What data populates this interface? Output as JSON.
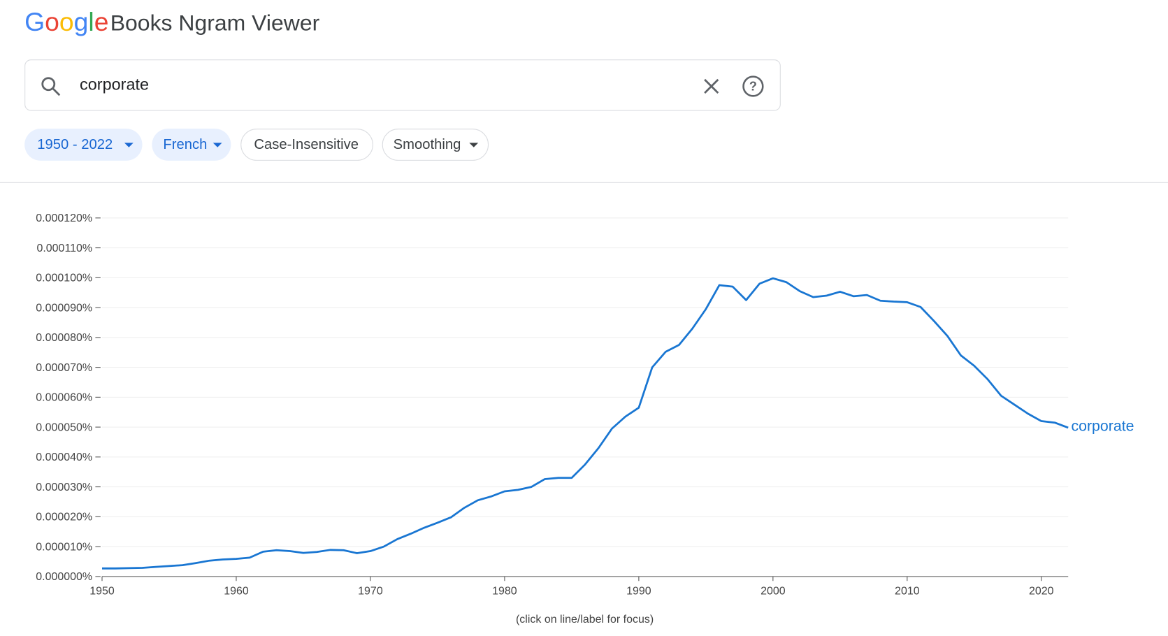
{
  "header": {
    "logo": "Google",
    "title": "Books Ngram Viewer"
  },
  "search": {
    "query": "corporate"
  },
  "filters": [
    "1950 - 2022",
    "French",
    "Case-Insensitive",
    "Smoothing"
  ],
  "chart_data": {
    "type": "line",
    "x": [
      1950,
      1951,
      1952,
      1953,
      1954,
      1955,
      1956,
      1957,
      1958,
      1959,
      1960,
      1961,
      1962,
      1963,
      1964,
      1965,
      1966,
      1967,
      1968,
      1969,
      1970,
      1971,
      1972,
      1973,
      1974,
      1975,
      1976,
      1977,
      1978,
      1979,
      1980,
      1981,
      1982,
      1983,
      1984,
      1985,
      1986,
      1987,
      1988,
      1989,
      1990,
      1991,
      1992,
      1993,
      1994,
      1995,
      1996,
      1997,
      1998,
      1999,
      2000,
      2001,
      2002,
      2003,
      2004,
      2005,
      2006,
      2007,
      2008,
      2009,
      2010,
      2011,
      2012,
      2013,
      2014,
      2015,
      2016,
      2017,
      2018,
      2019,
      2020,
      2021,
      2022
    ],
    "series": [
      {
        "name": "corporate",
        "color": "#1976d2",
        "values": [
          2.7e-06,
          2.7e-06,
          2.8e-06,
          2.9e-06,
          3.2e-06,
          3.5e-06,
          3.8e-06,
          4.5e-06,
          5.3e-06,
          5.7e-06,
          5.9e-06,
          6.3e-06,
          8.3e-06,
          8.8e-06,
          8.5e-06,
          7.9e-06,
          8.2e-06,
          8.9e-06,
          8.8e-06,
          7.8e-06,
          8.5e-06,
          1e-05,
          1.25e-05,
          1.43e-05,
          1.63e-05,
          1.8e-05,
          1.98e-05,
          2.3e-05,
          2.55e-05,
          2.68e-05,
          2.85e-05,
          2.9e-05,
          3e-05,
          3.26e-05,
          3.3e-05,
          3.3e-05,
          3.75e-05,
          4.3e-05,
          4.95e-05,
          5.35e-05,
          5.65e-05,
          7e-05,
          7.52e-05,
          7.75e-05,
          8.3e-05,
          8.95e-05,
          9.75e-05,
          9.7e-05,
          9.25e-05,
          9.8e-05,
          9.98e-05,
          9.85e-05,
          9.55e-05,
          9.35e-05,
          9.4e-05,
          9.53e-05,
          9.38e-05,
          9.42e-05,
          9.23e-05,
          9.2e-05,
          9.18e-05,
          9.02e-05,
          8.55e-05,
          8.05e-05,
          7.4e-05,
          7.05e-05,
          6.6e-05,
          6.05e-05,
          5.75e-05,
          5.45e-05,
          5.2e-05,
          5.15e-05,
          4.98e-05
        ]
      }
    ],
    "xlim": [
      1950,
      2022
    ],
    "xticks": [
      1950,
      1960,
      1970,
      1980,
      1990,
      2000,
      2010,
      2020
    ],
    "ylim": [
      0,
      0.00012
    ],
    "yticks": [
      {
        "value": 0,
        "label": "0.000000%"
      },
      {
        "value": 1e-05,
        "label": "0.000010%"
      },
      {
        "value": 2e-05,
        "label": "0.000020%"
      },
      {
        "value": 3e-05,
        "label": "0.000030%"
      },
      {
        "value": 4e-05,
        "label": "0.000040%"
      },
      {
        "value": 5e-05,
        "label": "0.000050%"
      },
      {
        "value": 6e-05,
        "label": "0.000060%"
      },
      {
        "value": 7e-05,
        "label": "0.000070%"
      },
      {
        "value": 8e-05,
        "label": "0.000080%"
      },
      {
        "value": 9e-05,
        "label": "0.000090%"
      },
      {
        "value": 0.0001,
        "label": "0.000100%"
      },
      {
        "value": 0.00011,
        "label": "0.000110%"
      },
      {
        "value": 0.00012,
        "label": "0.000120%"
      }
    ],
    "grid": true,
    "annotation": "(click on line/label for focus)"
  }
}
